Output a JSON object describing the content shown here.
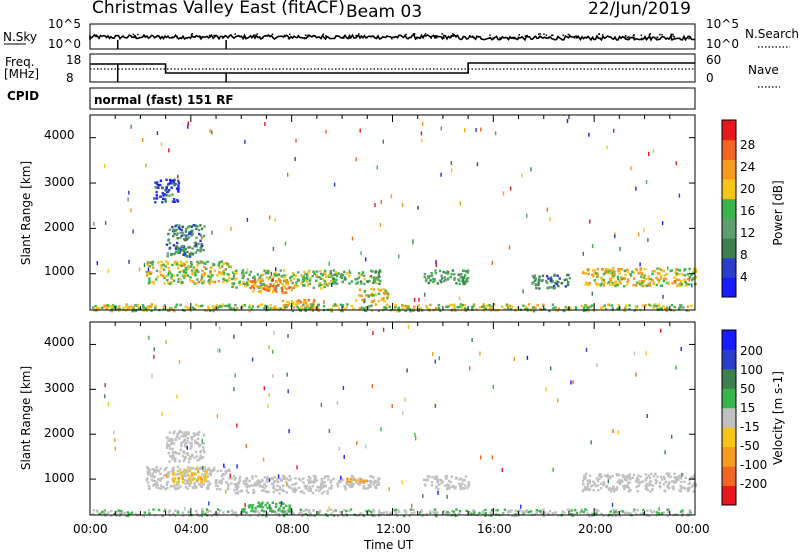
{
  "header": {
    "station": "Christmas Valley East (fitACF)",
    "beam": "Beam 03",
    "date": "22/Jun/2019"
  },
  "nsky_panel": {
    "left_label": "N.Sky",
    "right_label": "N.Search",
    "left_ticks": [
      "10^5",
      "10^0"
    ],
    "right_ticks": [
      "10^5",
      "10^0"
    ]
  },
  "freq_panel": {
    "left_label_1": "Freq.",
    "left_label_2": "[MHz]",
    "right_label": "Nave",
    "left_ticks": [
      "18",
      "8"
    ],
    "right_ticks": [
      "60",
      "0"
    ]
  },
  "cpid": {
    "label": "CPID",
    "text": "normal (fast) 151 RF"
  },
  "colors": {
    "power": [
      "#1a1aff",
      "#2a3fc9",
      "#3f7f4f",
      "#5f9f6f",
      "#39b54a",
      "#f5c518",
      "#f79a1e",
      "#f26522",
      "#e8191c"
    ],
    "velocity": [
      "#e8191c",
      "#f26522",
      "#f79a1e",
      "#f5c518",
      "#c0c0c0",
      "#39b54a",
      "#3f7f4f",
      "#2a3fc9",
      "#1a1aff"
    ],
    "ground_scatter": "#c0c0c0"
  },
  "chart_data": [
    {
      "type": "heatmap",
      "name": "Power",
      "xlabel": "",
      "ylabel": "Slant Range [km]",
      "xlim": [
        0,
        24
      ],
      "ylim": [
        200,
        4500
      ],
      "y_ticks": [
        "1000",
        "2000",
        "3000",
        "4000"
      ],
      "colorbar": {
        "label": "Power [dB]",
        "range": [
          0,
          32
        ],
        "ticks": [
          "4",
          "8",
          "12",
          "16",
          "20",
          "24",
          "28"
        ]
      },
      "regions": [
        {
          "t": [
            2.2,
            5.6
          ],
          "r": [
            800,
            1300
          ],
          "value": 18
        },
        {
          "t": [
            5.6,
            9.5
          ],
          "r": [
            700,
            1100
          ],
          "value": 16
        },
        {
          "t": [
            6.3,
            8.0
          ],
          "r": [
            600,
            900
          ],
          "value": 24
        },
        {
          "t": [
            9.5,
            11.5
          ],
          "r": [
            800,
            1100
          ],
          "value": 14
        },
        {
          "t": [
            10.5,
            11.8
          ],
          "r": [
            400,
            700
          ],
          "value": 20
        },
        {
          "t": [
            7.5,
            9.0
          ],
          "r": [
            250,
            450
          ],
          "value": 22
        },
        {
          "t": [
            13.2,
            15.0
          ],
          "r": [
            800,
            1100
          ],
          "value": 12
        },
        {
          "t": [
            17.5,
            19.0
          ],
          "r": [
            700,
            1000
          ],
          "value": 10
        },
        {
          "t": [
            19.5,
            24.0
          ],
          "r": [
            750,
            1150
          ],
          "value": 20
        },
        {
          "t": [
            0.0,
            24.0
          ],
          "r": [
            200,
            350
          ],
          "value": 18
        },
        {
          "t": [
            3.0,
            4.5
          ],
          "r": [
            1400,
            2100
          ],
          "value": 10
        },
        {
          "t": [
            2.5,
            3.5
          ],
          "r": [
            2600,
            3100
          ],
          "value": 6
        }
      ]
    },
    {
      "type": "heatmap",
      "name": "Velocity",
      "xlabel": "Time UT",
      "ylabel": "Slant Range [km]",
      "xlim": [
        0,
        24
      ],
      "ylim": [
        200,
        4500
      ],
      "x_ticks": [
        "00:00",
        "04:00",
        "08:00",
        "12:00",
        "16:00",
        "20:00",
        "00:00"
      ],
      "y_ticks": [
        "1000",
        "2000",
        "3000",
        "4000"
      ],
      "colorbar": {
        "label": "Velocity [m s-1]",
        "ticks": [
          "200",
          "100",
          "50",
          "15",
          "-15",
          "-50",
          "-100",
          "-200"
        ]
      },
      "regions": [
        {
          "t": [
            2.2,
            5.6
          ],
          "r": [
            800,
            1300
          ],
          "value": 0
        },
        {
          "t": [
            5.6,
            9.5
          ],
          "r": [
            700,
            1100
          ],
          "value": 0
        },
        {
          "t": [
            9.5,
            11.5
          ],
          "r": [
            800,
            1100
          ],
          "value": 0
        },
        {
          "t": [
            3.2,
            4.6
          ],
          "r": [
            950,
            1250
          ],
          "value": -40
        },
        {
          "t": [
            10.0,
            11.0
          ],
          "r": [
            950,
            1050
          ],
          "value": -60
        },
        {
          "t": [
            13.2,
            15.0
          ],
          "r": [
            800,
            1100
          ],
          "value": 0
        },
        {
          "t": [
            19.5,
            24.0
          ],
          "r": [
            750,
            1150
          ],
          "value": 0
        },
        {
          "t": [
            0.0,
            24.0
          ],
          "r": [
            200,
            350
          ],
          "value": 10
        },
        {
          "t": [
            3.0,
            4.5
          ],
          "r": [
            1400,
            2100
          ],
          "value": 0
        },
        {
          "t": [
            6.0,
            8.0
          ],
          "r": [
            300,
            500
          ],
          "value": 30
        }
      ]
    }
  ]
}
